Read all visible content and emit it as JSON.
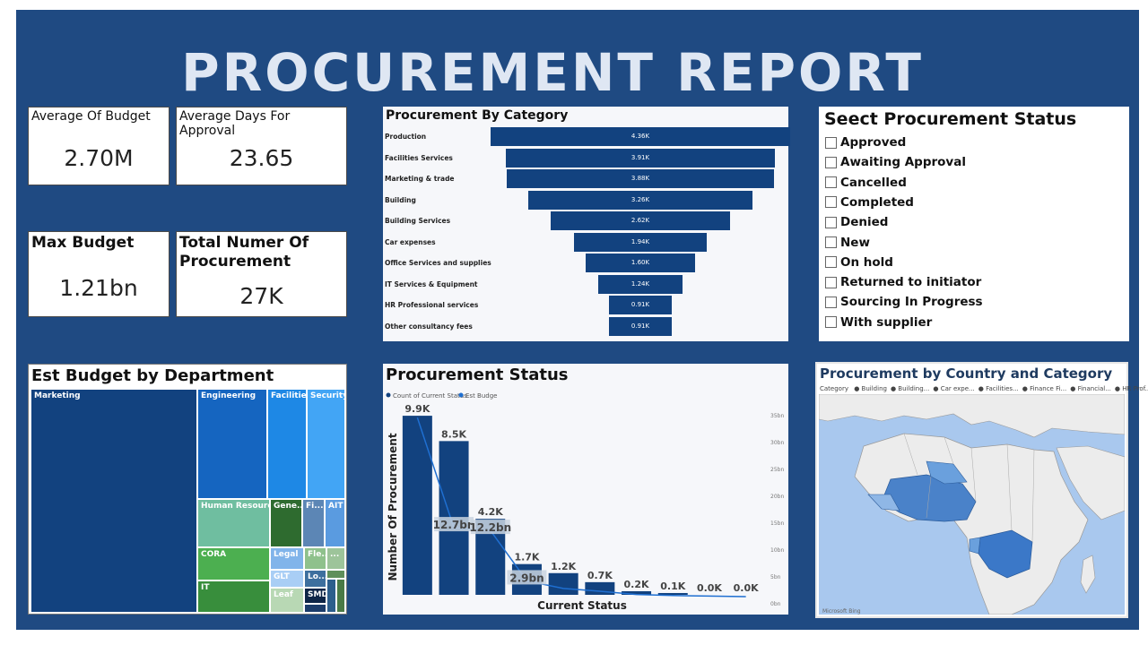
{
  "title": "PROCUREMENT REPORT",
  "kpis": {
    "avg_budget": {
      "label": "Average Of Budget",
      "value": "2.70M"
    },
    "avg_days": {
      "label": "Average Days For Approval",
      "value": "23.65"
    },
    "max_budget": {
      "label": "Max Budget",
      "value": "1.21bn"
    },
    "total_proc": {
      "label": "Total Numer Of Procurement",
      "value": "27K"
    }
  },
  "funnel": {
    "title": "Procurement By Category",
    "rows": [
      {
        "label": "Production",
        "value": 4.36,
        "text": "4.36K"
      },
      {
        "label": "Facilities Services",
        "value": 3.91,
        "text": "3.91K"
      },
      {
        "label": "Marketing & trade",
        "value": 3.88,
        "text": "3.88K"
      },
      {
        "label": "Building",
        "value": 3.26,
        "text": "3.26K"
      },
      {
        "label": "Building Services",
        "value": 2.62,
        "text": "2.62K"
      },
      {
        "label": "Car expenses",
        "value": 1.94,
        "text": "1.94K"
      },
      {
        "label": "Office Services and supplies",
        "value": 1.6,
        "text": "1.60K"
      },
      {
        "label": "IT Services & Equipment",
        "value": 1.24,
        "text": "1.24K"
      },
      {
        "label": "HR Professional services",
        "value": 0.91,
        "text": "0.91K"
      },
      {
        "label": "Other consultancy fees",
        "value": 0.91,
        "text": "0.91K"
      }
    ]
  },
  "status_filter": {
    "title": "Seect Procurement Status",
    "options": [
      "Approved",
      "Awaiting Approval",
      "Cancelled",
      "Completed",
      "Denied",
      "New",
      "On hold",
      "Returned to initiator",
      "Sourcing In Progress",
      "With supplier"
    ]
  },
  "treemap": {
    "title": "Est Budget by Department",
    "tiles": [
      "Marketing",
      "Engineering",
      "Facilities",
      "Security",
      "Human Resources",
      "Gene...",
      "Fi...",
      "AIT",
      "CORA",
      "Legal",
      "Fle...",
      "...",
      "GLT",
      "Lo...",
      "IT",
      "Leaf",
      "SMD"
    ]
  },
  "chart_data": {
    "type": "bar",
    "title": "Procurement Status",
    "xlabel": "Current Status",
    "ylabel": "Number Of Procurement",
    "legend": [
      "Count of Current Status",
      "Est Budge"
    ],
    "bar_labels": [
      "9.9K",
      "8.5K",
      "4.2K",
      "1.7K",
      "1.2K",
      "0.7K",
      "0.2K",
      "0.1K",
      "0.0K",
      "0.0K"
    ],
    "values": [
      9900,
      8500,
      4200,
      1700,
      1200,
      700,
      200,
      100,
      0,
      0
    ],
    "line_values_bn": [
      33,
      12.7,
      12.2,
      2.9,
      1.5,
      1.0,
      0.4,
      0.2,
      0.1,
      0.0
    ],
    "line_labels": [
      "",
      "12.7bn",
      "12.2bn",
      "2.9bn",
      "",
      "",
      "",
      "",
      "",
      ""
    ],
    "y2_ticks": [
      "35bn",
      "30bn",
      "25bn",
      "20bn",
      "15bn",
      "10bn",
      "5bn",
      "0bn"
    ],
    "bar_color": "#12427f",
    "line_color": "#1f6fd1"
  },
  "map": {
    "title": "Procurement by Country and Category",
    "legend_label": "Category",
    "legend_items": [
      "Building",
      "Building...",
      "Car expe...",
      "Facilities...",
      "Finance Fi...",
      "Financial...",
      "HR Prof..."
    ],
    "footer": "Microsoft Bing"
  }
}
